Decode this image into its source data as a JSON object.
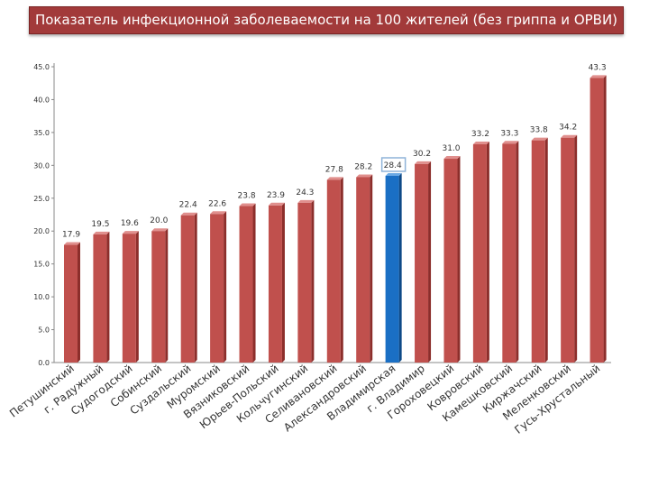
{
  "chart_data": {
    "type": "bar",
    "title": "Показатель инфекционной заболеваемости на 100 жителей (без гриппа и ОРВИ)",
    "xlabel": "",
    "ylabel": "",
    "ylim": [
      0,
      45
    ],
    "yticks": [
      "0.0",
      "5.0",
      "10.0",
      "15.0",
      "20.0",
      "25.0",
      "30.0",
      "35.0",
      "40.0",
      "45.0"
    ],
    "grid": false,
    "legend": "none",
    "categories": [
      "Петушинский",
      "г. Радужный",
      "Судогодский",
      "Собинский",
      "Суздальский",
      "Муромский",
      "Вязниковский",
      "Юрьев-Польский",
      "Кольчугинский",
      "Селивановский",
      "Александровский",
      "Владимирская",
      "г. Владимир",
      "Гороховецкий",
      "Ковровский",
      "Камешковский",
      "Киржачский",
      "Меленковский",
      "Гусь-Хрустальный"
    ],
    "values": [
      17.9,
      19.5,
      19.6,
      20.0,
      22.4,
      22.6,
      23.8,
      23.9,
      24.3,
      27.8,
      28.2,
      28.4,
      30.2,
      31.0,
      33.2,
      33.3,
      33.8,
      34.2,
      43.3
    ],
    "labels": [
      "17.9",
      "19.5",
      "19.6",
      "20.0",
      "22.4",
      "22.6",
      "23.8",
      "23.9",
      "24.3",
      "27.8",
      "28.2",
      "28.4",
      "30.2",
      "31.0",
      "33.2",
      "33.3",
      "33.8",
      "34.2",
      "43.3"
    ],
    "highlight_index": 11,
    "colors": {
      "bar": "#c0504d",
      "bar_side": "#8c2e2b",
      "bar_top": "#e08f8d",
      "highlight": "#1a6fc4",
      "highlight_side": "#0e4a87",
      "highlight_top": "#6aa9e4",
      "label_box": "#8fb3d9"
    }
  }
}
